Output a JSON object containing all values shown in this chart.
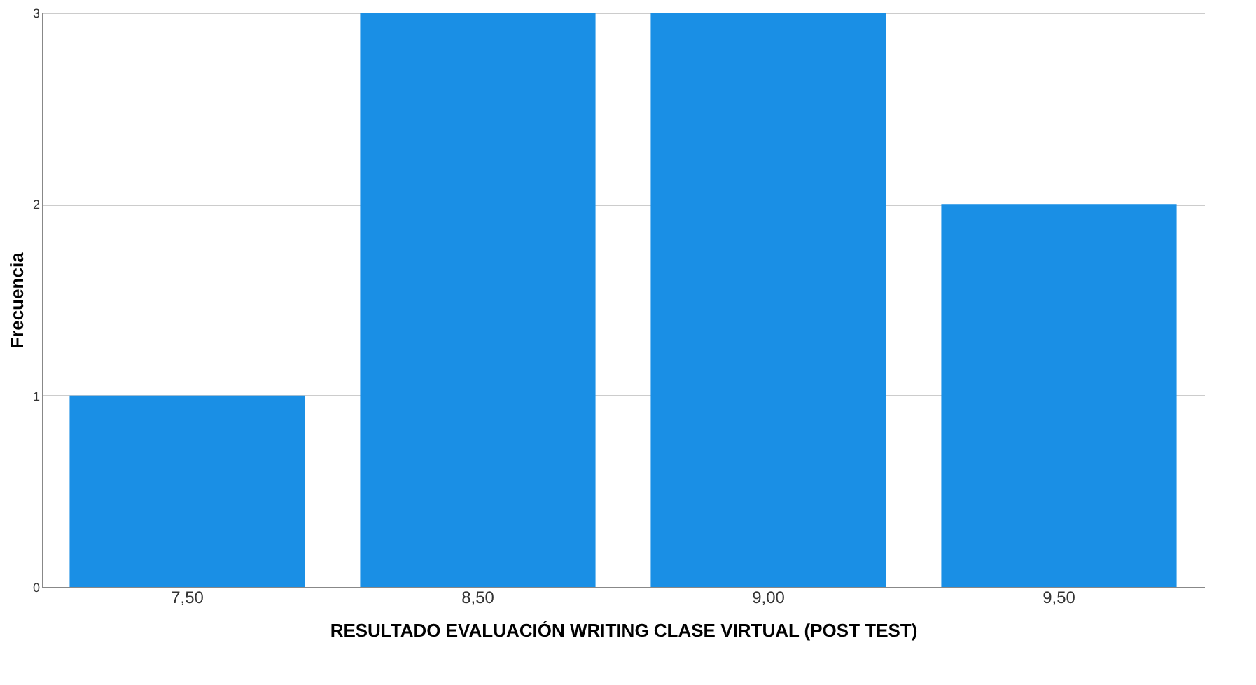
{
  "chart_data": {
    "type": "bar",
    "xlabel": "RESULTADO EVALUACIÓN WRITING CLASE VIRTUAL (POST TEST)",
    "ylabel": "Frecuencia",
    "categories": [
      "7,50",
      "8,50",
      "9,00",
      "9,50"
    ],
    "values": [
      1,
      3,
      3,
      2
    ],
    "color": "#1a8fe5",
    "ylim": [
      0,
      3
    ],
    "yticks": [
      0,
      1,
      2,
      3
    ],
    "grid": "y"
  }
}
